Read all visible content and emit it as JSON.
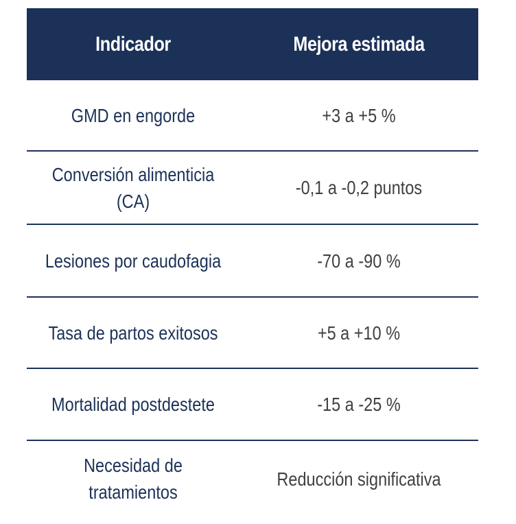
{
  "table": {
    "headers": {
      "indicator": "Indicador",
      "improvement": "Mejora estimada"
    },
    "rows": [
      {
        "indicator": [
          "GMD en engorde"
        ],
        "improvement": "+3 a +5 %"
      },
      {
        "indicator": [
          "Conversión alimenticia",
          "(CA)"
        ],
        "improvement": "-0,1 a -0,2 puntos"
      },
      {
        "indicator": [
          "Lesiones por caudofagia"
        ],
        "improvement": "-70 a -90 %"
      },
      {
        "indicator": [
          "Tasa de partos exitosos"
        ],
        "improvement": "+5 a +10 %"
      },
      {
        "indicator": [
          "Mortalidad postdestete"
        ],
        "improvement": "-15 a -25 %"
      },
      {
        "indicator": [
          "Necesidad de",
          "tratamientos"
        ],
        "improvement": "Reducción significativa"
      }
    ],
    "colors": {
      "header_bg": "#1b3157",
      "header_text": "#ffffff",
      "indicator_text": "#1b3157",
      "value_text": "#404040",
      "divider": "#1b3157"
    }
  }
}
